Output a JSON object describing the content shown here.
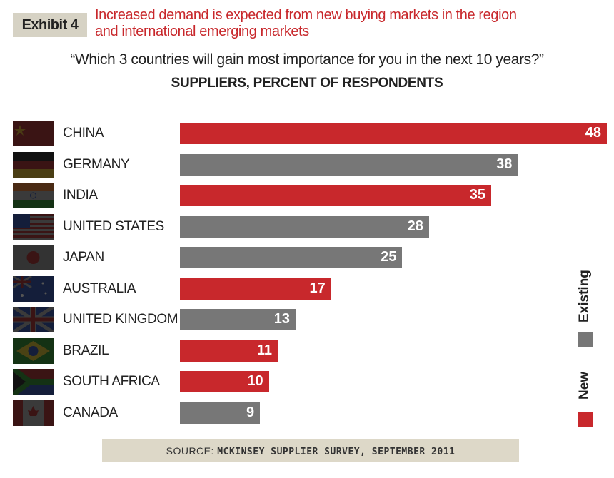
{
  "header": {
    "exhibit": "Exhibit 4",
    "headline_line1": "Increased demand is expected from new buying markets in the region",
    "headline_line2": "and international emerging markets"
  },
  "chart_data": {
    "type": "bar",
    "orientation": "horizontal",
    "title": "“Which 3 countries will gain most importance for you in the next 10 years?”",
    "subtitle": "SUPPLIERS, PERCENT OF RESPONDENTS",
    "categories": [
      "CHINA",
      "GERMANY",
      "INDIA",
      "UNITED STATES",
      "JAPAN",
      "AUSTRALIA",
      "UNITED KINGDOM",
      "BRAZIL",
      "SOUTH AFRICA",
      "CANADA"
    ],
    "values": [
      48,
      38,
      35,
      28,
      25,
      17,
      13,
      11,
      10,
      9
    ],
    "market_type": [
      "New",
      "Existing",
      "New",
      "Existing",
      "Existing",
      "New",
      "Existing",
      "New",
      "New",
      "Existing"
    ],
    "legend": [
      {
        "name": "Existing",
        "color": "#777777"
      },
      {
        "name": "New",
        "color": "#c8282c"
      }
    ],
    "legend_placement": "right",
    "xlim": [
      0,
      48
    ]
  },
  "source": {
    "prefix": "SOURCE: ",
    "text": "MCKINSEY SUPPLIER SURVEY, SEPTEMBER 2011"
  }
}
